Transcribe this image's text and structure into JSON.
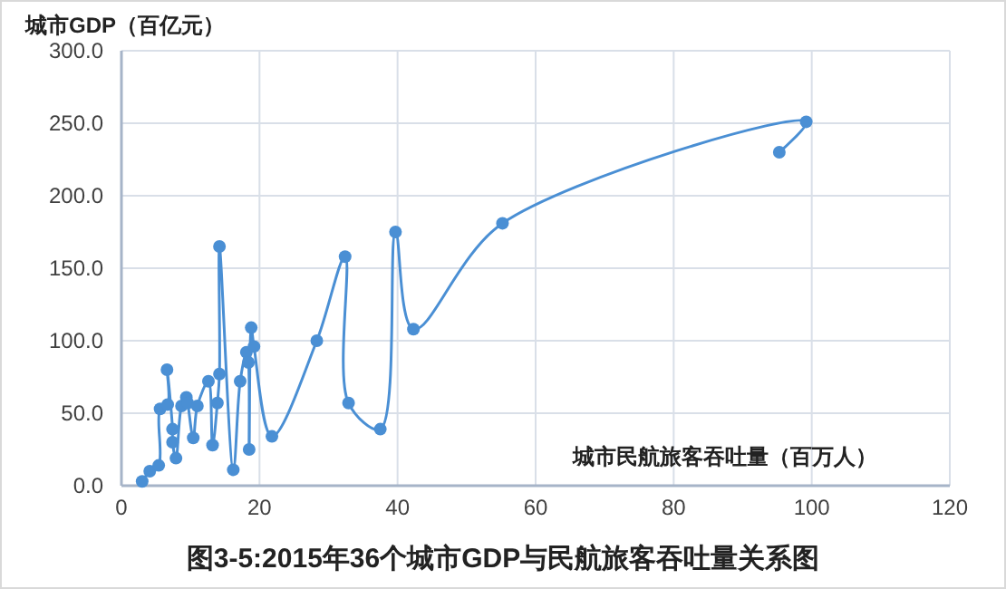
{
  "chart_data": {
    "type": "line",
    "title": "图3-5:2015年36个城市GDP与民航旅客吞吐量关系图",
    "xlabel": "城市民航旅客吞吐量（百万人）",
    "ylabel": "城市GDP（百亿元）",
    "series": [
      {
        "color": "#4a8fd4",
        "x": [
          3.0,
          4.1,
          5.4,
          5.6,
          6.7,
          6.6,
          7.4,
          7.4,
          7.9,
          8.7,
          9.4,
          9.6,
          10.4,
          11.0,
          12.6,
          13.2,
          13.9,
          14.2,
          14.2,
          16.2,
          17.2,
          18.1,
          18.4,
          18.5,
          18.8,
          19.2,
          21.8,
          28.3,
          32.4,
          32.9,
          37.5,
          39.7,
          42.3,
          55.2,
          99.2,
          95.3
        ],
        "values": [
          3,
          10,
          14,
          53,
          56,
          80,
          39,
          30,
          19,
          55,
          61,
          57,
          33,
          55,
          72,
          28,
          57,
          77,
          165,
          11,
          72,
          92,
          85,
          25,
          109,
          96,
          34,
          100,
          158,
          57,
          39,
          175,
          108,
          181,
          251,
          230
        ]
      }
    ],
    "xlim": [
      0,
      120
    ],
    "xticks": [
      0,
      20,
      40,
      60,
      80,
      100,
      120
    ],
    "ylim": [
      0,
      300
    ],
    "yticks": [
      {
        "value": 0,
        "label": "0.0"
      },
      {
        "value": 50,
        "label": "50.0"
      },
      {
        "value": 100,
        "label": "100.0"
      },
      {
        "value": 150,
        "label": "150.0"
      },
      {
        "value": 200,
        "label": "200.0"
      },
      {
        "value": 250,
        "label": "250.0"
      },
      {
        "value": 300,
        "label": "300.0"
      }
    ],
    "grid": true,
    "marker": "circle",
    "line_style": "solid"
  }
}
